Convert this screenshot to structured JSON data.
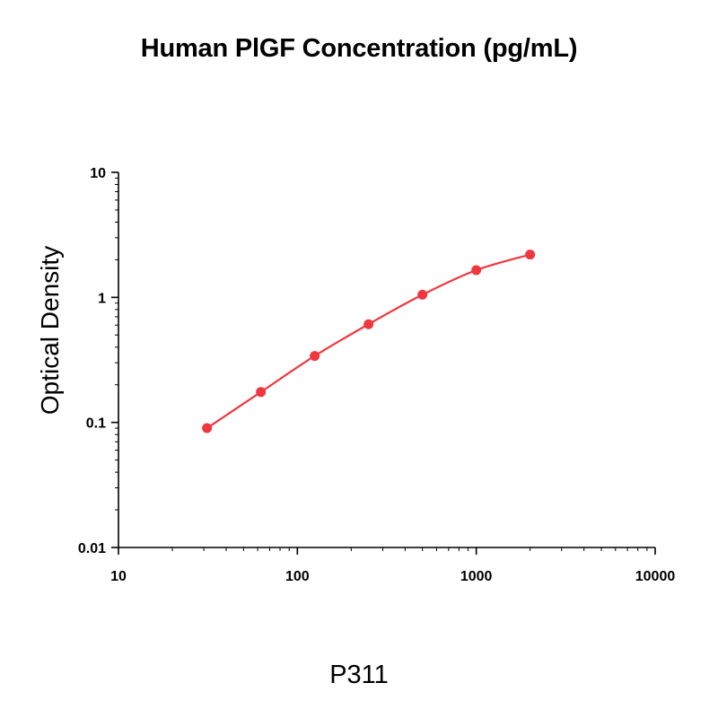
{
  "chart_data": {
    "type": "line",
    "title": "Human PlGF Concentration (pg/mL)",
    "ylabel": "Optical Density",
    "xlabel": "",
    "x_scale": "log",
    "y_scale": "log",
    "xlim": [
      10,
      10000
    ],
    "ylim": [
      0.01,
      10
    ],
    "x_ticks": [
      "10",
      "100",
      "1000",
      "10000"
    ],
    "y_ticks": [
      "0.01",
      "0.1",
      "1",
      "10"
    ],
    "grid": false,
    "series": [
      {
        "x": [
          31.25,
          62.5,
          125,
          250,
          500,
          1000,
          2000
        ],
        "y": [
          0.09,
          0.175,
          0.34,
          0.61,
          1.05,
          1.65,
          2.2
        ],
        "color": "#f0373f"
      }
    ]
  },
  "caption": "P311"
}
